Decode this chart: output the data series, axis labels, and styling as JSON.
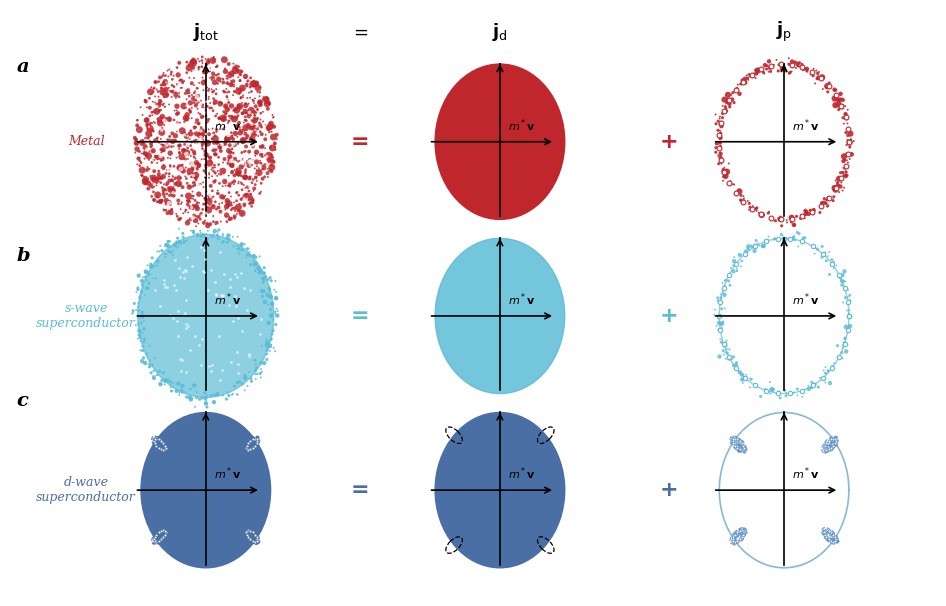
{
  "fig_width": 9.46,
  "fig_height": 6.06,
  "bg_color": "#ffffff",
  "red_fill": "#c0272d",
  "red_dots": "#c0272d",
  "cyan_fill": "#5bbcd6",
  "cyan_dots": "#5bbcd6",
  "blue_fill": "#4a6fa5",
  "blue_dots": "#4a6fa5",
  "light_blue_circle": "#7ab3d4",
  "row_labels": [
    "a",
    "b",
    "c"
  ],
  "col_labels": [
    "j_tot",
    "=",
    "j_d",
    "+",
    "j_p"
  ],
  "side_labels": [
    "Metal",
    "s-wave\nsuperconductor",
    "d-wave\nsuperconductor"
  ],
  "side_label_colors": [
    "#c0272d",
    "#5bbcd6",
    "#4a6fa5"
  ]
}
